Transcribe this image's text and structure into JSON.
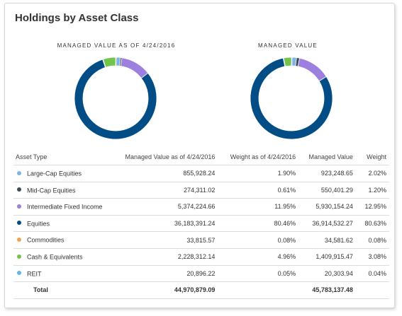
{
  "title": "Holdings by Asset Class",
  "charts": [
    {
      "caption": "MANAGED VALUE AS OF 4/24/2016",
      "slices": [
        {
          "category": "Large-Cap Equities",
          "percent": 1.9
        },
        {
          "category": "Mid-Cap Equities",
          "percent": 0.61
        },
        {
          "category": "Intermediate Fixed Income",
          "percent": 11.95
        },
        {
          "category": "Equities",
          "percent": 80.46
        },
        {
          "category": "Commodities",
          "percent": 0.08
        },
        {
          "category": "Cash & Equivalents",
          "percent": 4.96
        },
        {
          "category": "REIT",
          "percent": 0.05
        }
      ]
    },
    {
      "caption": "MANAGED VALUE",
      "slices": [
        {
          "category": "Large-Cap Equities",
          "percent": 2.02
        },
        {
          "category": "Mid-Cap Equities",
          "percent": 1.2
        },
        {
          "category": "Intermediate Fixed Income",
          "percent": 12.95
        },
        {
          "category": "Equities",
          "percent": 80.63
        },
        {
          "category": "Commodities",
          "percent": 0.08
        },
        {
          "category": "Cash & Equivalents",
          "percent": 3.08
        },
        {
          "category": "REIT",
          "percent": 0.04
        }
      ]
    }
  ],
  "table": {
    "headers": {
      "asset_type": "Asset Type",
      "managed_value_asof": "Managed Value as of 4/24/2016",
      "weight_asof": "Weight as of 4/24/2016",
      "managed_value": "Managed Value",
      "weight": "Weight"
    },
    "rows": [
      {
        "name": "Large-Cap Equities",
        "color": "#7db3e6",
        "mv_asof": "855,928.24",
        "w_asof": "1.90%",
        "mv": "923,248.65",
        "w": "2.02%"
      },
      {
        "name": "Mid-Cap Equities",
        "color": "#3d4a5c",
        "mv_asof": "274,311.02",
        "w_asof": "0.61%",
        "mv": "550,401.29",
        "w": "1.20%"
      },
      {
        "name": "Intermediate Fixed Income",
        "color": "#9d7fe0",
        "mv_asof": "5,374,224.66",
        "w_asof": "11.95%",
        "mv": "5,930,154.24",
        "w": "12.95%"
      },
      {
        "name": "Equities",
        "color": "#024d86",
        "mv_asof": "36,183,391.24",
        "w_asof": "80.46%",
        "mv": "36,914,532.27",
        "w": "80.63%"
      },
      {
        "name": "Commodities",
        "color": "#f2a154",
        "mv_asof": "33,815.57",
        "w_asof": "0.08%",
        "mv": "34,581.62",
        "w": "0.08%"
      },
      {
        "name": "Cash & Equivalents",
        "color": "#74c44c",
        "mv_asof": "2,228,312.14",
        "w_asof": "4.96%",
        "mv": "1,409,915.47",
        "w": "3.08%"
      },
      {
        "name": "REIT",
        "color": "#5cb8e6",
        "mv_asof": "20,896.22",
        "w_asof": "0.05%",
        "mv": "20,303.94",
        "w": "0.04%"
      }
    ],
    "total": {
      "label": "Total",
      "mv_asof": "44,970,879.09",
      "mv": "45,783,137.48"
    }
  }
}
